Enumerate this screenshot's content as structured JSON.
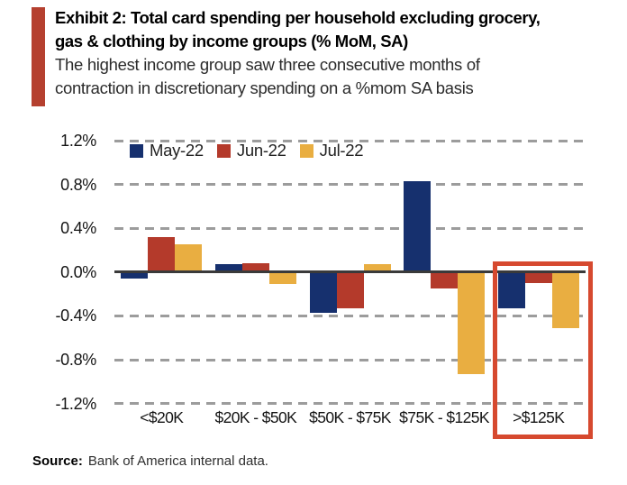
{
  "header": {
    "title_line1": "Exhibit 2: Total card spending per household excluding grocery,",
    "title_line2": "gas & clothing by income groups (% MoM, SA)",
    "subtitle_line1": "The highest income group saw three consecutive months of",
    "subtitle_line2": "contraction in discretionary spending on a %mom SA basis"
  },
  "chart_data": {
    "type": "bar",
    "title": "Exhibit 2: Total card spending per household excluding grocery, gas & clothing by income groups (% MoM, SA)",
    "subtitle": "The highest income group saw three consecutive months of contraction in discretionary spending on a %mom SA basis",
    "xlabel": "",
    "ylabel": "",
    "categories": [
      "<$20K",
      "$20K - $50K",
      "$50K - $75K",
      "$75K - $125K",
      ">$125K"
    ],
    "series": [
      {
        "name": "May-22",
        "color": "#16306e",
        "values": [
          -0.06,
          0.07,
          -0.37,
          0.83,
          -0.33
        ]
      },
      {
        "name": "Jun-22",
        "color": "#b43a2b",
        "values": [
          0.32,
          0.08,
          -0.33,
          -0.15,
          -0.1
        ]
      },
      {
        "name": "Jul-22",
        "color": "#e9ae41",
        "values": [
          0.25,
          -0.11,
          0.07,
          -0.93,
          -0.51
        ]
      }
    ],
    "ylim": [
      -1.2,
      1.2
    ],
    "yticks": [
      {
        "value": 1.2,
        "label": "1.2%"
      },
      {
        "value": 0.8,
        "label": "0.8%"
      },
      {
        "value": 0.4,
        "label": "0.4%"
      },
      {
        "value": 0.0,
        "label": "0.0%"
      },
      {
        "value": -0.4,
        "label": "-0.4%"
      },
      {
        "value": -0.8,
        "label": "-0.8%"
      },
      {
        "value": -1.2,
        "label": "-1.2%"
      }
    ],
    "grid": "dashed-horizontal",
    "legend_position": "top-left-inside",
    "highlight": {
      "category": ">$125K",
      "color": "#d6492f"
    }
  },
  "source": {
    "label": "Source:",
    "text": "Bank of America internal data."
  }
}
